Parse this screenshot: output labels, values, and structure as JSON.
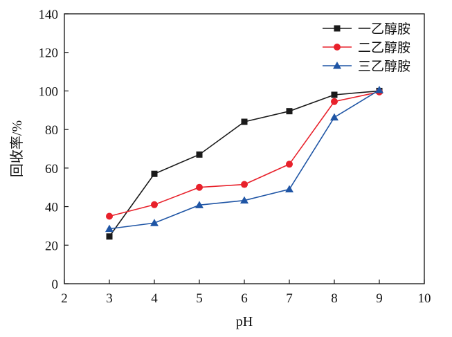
{
  "colors": {
    "series": [
      "#1a1a1a",
      "#e8212b",
      "#1f55a5"
    ],
    "axis": "#111111",
    "background": "#ffffff"
  },
  "chart_data": {
    "type": "line",
    "title": "",
    "xlabel": "pH",
    "ylabel": "回收率/%",
    "xlim": [
      2,
      10
    ],
    "ylim": [
      0,
      140
    ],
    "xticks": [
      2,
      3,
      4,
      5,
      6,
      7,
      8,
      9,
      10
    ],
    "yticks": [
      0,
      20,
      40,
      60,
      80,
      100,
      120,
      140
    ],
    "grid": false,
    "legend_position": "top-right",
    "x": [
      3,
      4,
      5,
      6,
      7,
      8,
      9
    ],
    "series": [
      {
        "name": "一乙醇胺",
        "marker": "square",
        "values": [
          24.5,
          57,
          67,
          84,
          89.5,
          98,
          100
        ]
      },
      {
        "name": "二乙醇胺",
        "marker": "circle",
        "values": [
          35,
          41,
          50,
          51.5,
          62,
          94.5,
          99.5
        ]
      },
      {
        "name": "三乙醇胺",
        "marker": "triangle",
        "values": [
          28.5,
          31.5,
          40.8,
          43.2,
          49,
          86.3,
          100.5
        ]
      }
    ]
  }
}
